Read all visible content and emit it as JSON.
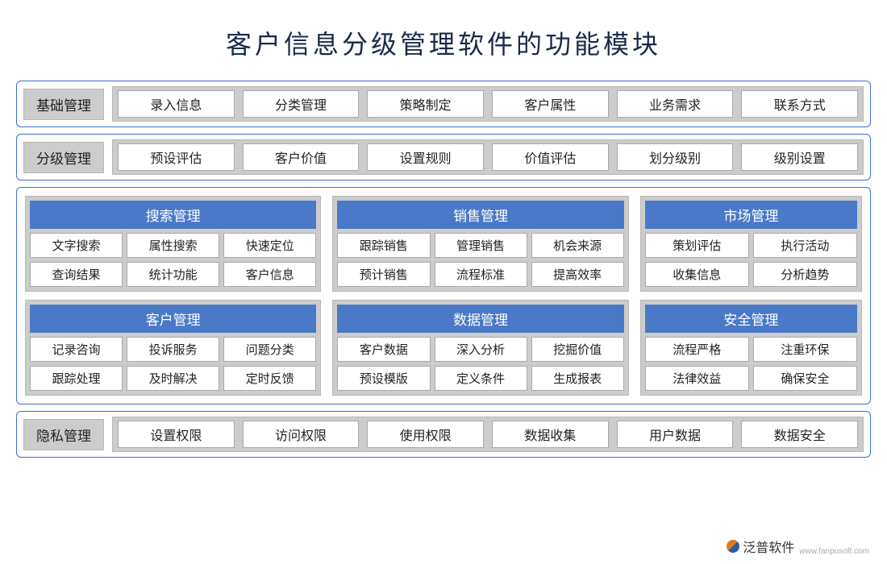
{
  "title": "客户信息分级管理软件的功能模块",
  "colors": {
    "border": "#3a6fd8",
    "card_bg": "#cccccc",
    "header_bg": "#4a7ac7",
    "header_fg": "#ffffff",
    "cell_bg": "#ffffff",
    "text": "#222222",
    "page_bg": "#ffffff"
  },
  "top_row": {
    "label": "基础管理",
    "items": [
      "录入信息",
      "分类管理",
      "策略制定",
      "客户属性",
      "业务需求",
      "联系方式"
    ]
  },
  "second_row": {
    "label": "分级管理",
    "items": [
      "预设评估",
      "客户价值",
      "设置规则",
      "价值评估",
      "划分级别",
      "级别设置"
    ]
  },
  "cards_row1": [
    {
      "title": "搜索管理",
      "cols": 3,
      "width": "wide",
      "items": [
        "文字搜索",
        "属性搜索",
        "快速定位",
        "查询结果",
        "统计功能",
        "客户信息"
      ]
    },
    {
      "title": "销售管理",
      "cols": 3,
      "width": "mid",
      "items": [
        "跟踪销售",
        "管理销售",
        "机会来源",
        "预计销售",
        "流程标准",
        "提高效率"
      ]
    },
    {
      "title": "市场管理",
      "cols": 2,
      "width": "narrow",
      "items": [
        "策划评估",
        "执行活动",
        "收集信息",
        "分析趋势"
      ]
    }
  ],
  "cards_row2": [
    {
      "title": "客户管理",
      "cols": 3,
      "width": "wide",
      "items": [
        "记录咨询",
        "投诉服务",
        "问题分类",
        "跟踪处理",
        "及时解决",
        "定时反馈"
      ]
    },
    {
      "title": "数据管理",
      "cols": 3,
      "width": "mid",
      "items": [
        "客户数据",
        "深入分析",
        "挖掘价值",
        "预设模版",
        "定义条件",
        "生成报表"
      ]
    },
    {
      "title": "安全管理",
      "cols": 2,
      "width": "narrow",
      "items": [
        "流程严格",
        "注重环保",
        "法律效益",
        "确保安全"
      ]
    }
  ],
  "bottom_row": {
    "label": "隐私管理",
    "items": [
      "设置权限",
      "访问权限",
      "使用权限",
      "数据收集",
      "用户数据",
      "数据安全"
    ]
  },
  "watermark": {
    "brand": "泛普软件",
    "url": "www.fanpusoft.com"
  }
}
